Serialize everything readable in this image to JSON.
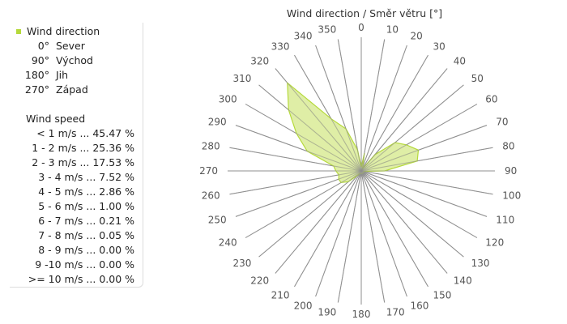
{
  "chart_data": {
    "type": "radar",
    "title": "Wind direction / Směr větru [°]",
    "directions": [
      0,
      10,
      20,
      30,
      40,
      50,
      60,
      70,
      80,
      90,
      100,
      110,
      120,
      130,
      140,
      150,
      160,
      170,
      180,
      190,
      200,
      210,
      220,
      230,
      240,
      250,
      260,
      270,
      280,
      290,
      300,
      310,
      320,
      330,
      340,
      350
    ],
    "series": [
      {
        "values": [
          3.0,
          13.5,
          3.5,
          2.0,
          16.0,
          33.0,
          39.0,
          45.5,
          42.5,
          17.5,
          2.0,
          2.0,
          2.0,
          2.0,
          2.0,
          2.0,
          2.0,
          2.0,
          2.0,
          2.0,
          2.0,
          2.0,
          4.0,
          12.5,
          17.5,
          18.0,
          17.0,
          19.0,
          21.0,
          43.0,
          56.0,
          71.0,
          86.0,
          45.0,
          33.5,
          16.0
        ]
      }
    ],
    "rlim": [
      0,
      100
    ],
    "grid": true,
    "color": "#b5d93b",
    "fill_color": "#d9eb96"
  },
  "legend": {
    "series_label": "Wind direction",
    "directions_key": [
      {
        "deg": "0°",
        "name": "Sever"
      },
      {
        "deg": "90°",
        "name": "Východ"
      },
      {
        "deg": "180°",
        "name": "Jih"
      },
      {
        "deg": "270°",
        "name": "Západ"
      }
    ],
    "speed_title": "Wind speed",
    "speed_rows": [
      {
        "text": "< 1 m/s ... 45.47 %"
      },
      {
        "text": "1 - 2 m/s ... 25.36 %"
      },
      {
        "text": "2 - 3 m/s ... 17.53 %"
      },
      {
        "text": "3 - 4 m/s ... 7.52 %"
      },
      {
        "text": "4 - 5 m/s ... 2.86 %"
      },
      {
        "text": "5 - 6 m/s ... 1.00 %"
      },
      {
        "text": "6 - 7 m/s ... 0.21 %"
      },
      {
        "text": "7 - 8 m/s ... 0.05 %"
      },
      {
        "text": "8 - 9 m/s ... 0.00 %"
      },
      {
        "text": "9 -10 m/s ... 0.00 %"
      },
      {
        "text": ">= 10 m/s ... 0.00 %"
      }
    ]
  }
}
